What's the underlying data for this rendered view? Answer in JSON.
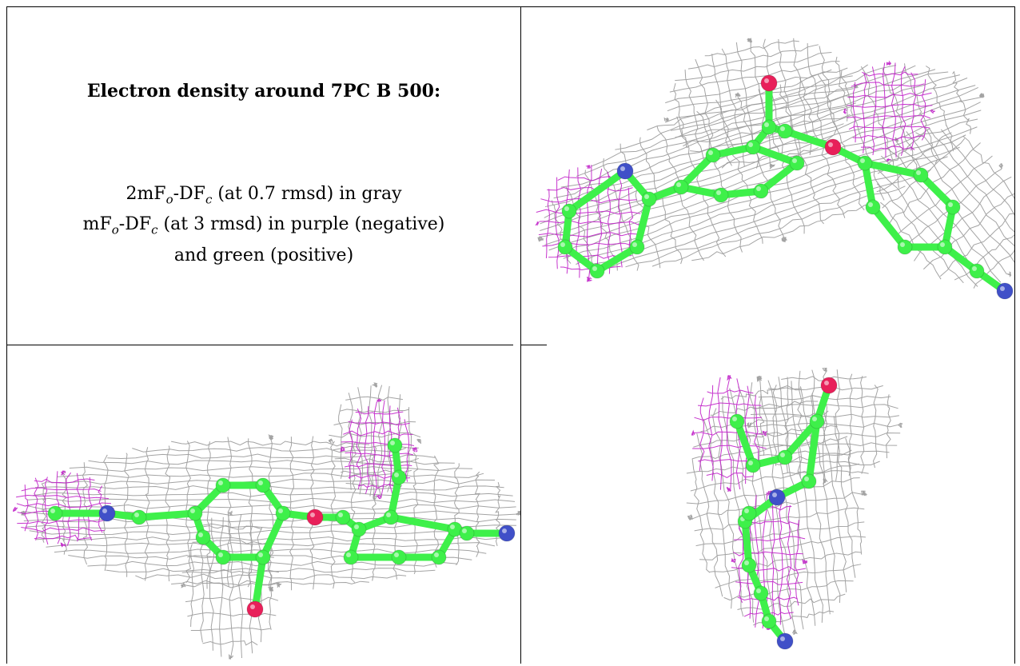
{
  "caption": {
    "title": "Electron density around 7PC B 500:",
    "line1_prefix": "2mF",
    "line1_sub1": "o",
    "line1_mid": "-DF",
    "line1_sub2": "c",
    "line1_suffix": " (at 0.7 rmsd) in gray",
    "line2_prefix": "mF",
    "line2_sub1": "o",
    "line2_mid": "-DF",
    "line2_sub2": "c",
    "line2_suffix": " (at 3 rmsd) in purple (negative)",
    "line3": "and green (positive)"
  },
  "colors": {
    "mesh_gray": "#9a9a9a",
    "mesh_purple": "#c020c8",
    "carbon_green": "#3ef04a",
    "oxygen_red": "#e8205a",
    "nitrogen_blue": "#4050c8"
  },
  "panels": [
    {
      "view": "top-right",
      "ligand": "7PC B 500"
    },
    {
      "view": "bottom-left",
      "ligand": "7PC B 500"
    },
    {
      "view": "bottom-right",
      "ligand": "7PC B 500"
    }
  ]
}
